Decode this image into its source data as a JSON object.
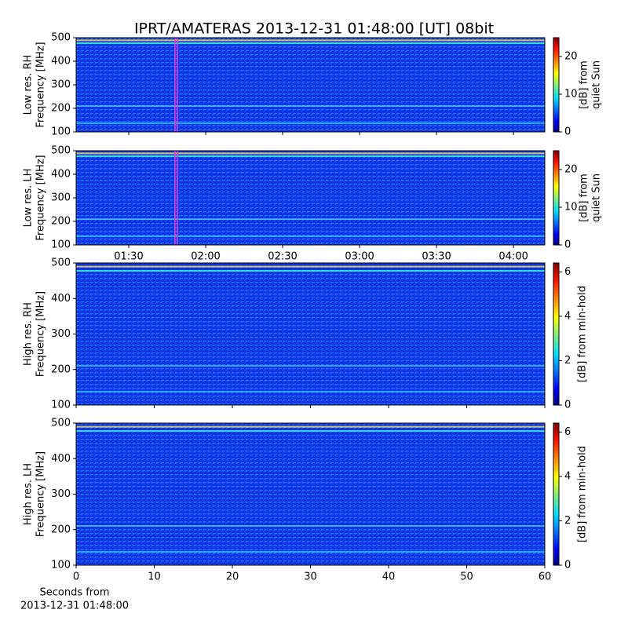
{
  "title": "IPRT/AMATERAS 2013-12-31 01:48:00 [UT]   08bit",
  "x_label": [
    "Seconds from",
    "2013-12-31 01:48:00"
  ],
  "chart_data": [
    {
      "type": "heatmap",
      "ylabel": [
        "Low res. RH",
        "Frequency [MHz]"
      ],
      "ylim": [
        100,
        500
      ],
      "yticks": [
        100,
        200,
        300,
        400,
        500
      ],
      "xlim": [
        69.5,
        252.2
      ],
      "xticks": [
        {
          "value": 90,
          "label": "01:30"
        },
        {
          "value": 120,
          "label": "02:00"
        },
        {
          "value": 150,
          "label": "02:30"
        },
        {
          "value": 180,
          "label": "03:00"
        },
        {
          "value": 210,
          "label": "03:30"
        },
        {
          "value": 240,
          "label": "04:00"
        }
      ],
      "show_xtick_labels": false,
      "markers": [
        108,
        109
      ],
      "marker_color": "#e040e0",
      "colorbar": {
        "label": [
          "[dB] from",
          "quiet Sun"
        ],
        "lim": [
          0,
          25
        ],
        "ticks": [
          0,
          10,
          20
        ]
      }
    },
    {
      "type": "heatmap",
      "ylabel": [
        "Low res. LH",
        "Frequency [MHz]"
      ],
      "ylim": [
        100,
        500
      ],
      "yticks": [
        100,
        200,
        300,
        400,
        500
      ],
      "xlim": [
        69.5,
        252.2
      ],
      "xticks": [
        {
          "value": 90,
          "label": "01:30"
        },
        {
          "value": 120,
          "label": "02:00"
        },
        {
          "value": 150,
          "label": "02:30"
        },
        {
          "value": 180,
          "label": "03:00"
        },
        {
          "value": 210,
          "label": "03:30"
        },
        {
          "value": 240,
          "label": "04:00"
        }
      ],
      "show_xtick_labels": true,
      "markers": [
        108,
        109
      ],
      "marker_color": "#e040e0",
      "colorbar": {
        "label": [
          "[dB] from",
          "quiet Sun"
        ],
        "lim": [
          0,
          25
        ],
        "ticks": [
          0,
          10,
          20
        ]
      }
    },
    {
      "type": "heatmap",
      "ylabel": [
        "High res. RH",
        "Frequency [MHz]"
      ],
      "ylim": [
        100,
        500
      ],
      "yticks": [
        100,
        200,
        300,
        400,
        500
      ],
      "xlim": [
        0,
        60
      ],
      "xticks": [
        0,
        10,
        20,
        30,
        40,
        50,
        60
      ],
      "show_xtick_labels": false,
      "colorbar": {
        "label": [
          "[dB] from min-hold"
        ],
        "lim": [
          0,
          6.4
        ],
        "ticks": [
          0,
          2,
          4,
          6
        ]
      }
    },
    {
      "type": "heatmap",
      "ylabel": [
        "High res. LH",
        "Frequency [MHz]"
      ],
      "ylim": [
        100,
        500
      ],
      "yticks": [
        100,
        200,
        300,
        400,
        500
      ],
      "xlim": [
        0,
        60
      ],
      "xticks": [
        0,
        10,
        20,
        30,
        40,
        50,
        60
      ],
      "show_xtick_labels": true,
      "colorbar": {
        "label": [
          "[dB] from min-hold"
        ],
        "lim": [
          0,
          6.4
        ],
        "ticks": [
          0,
          2,
          4,
          6
        ]
      }
    }
  ]
}
